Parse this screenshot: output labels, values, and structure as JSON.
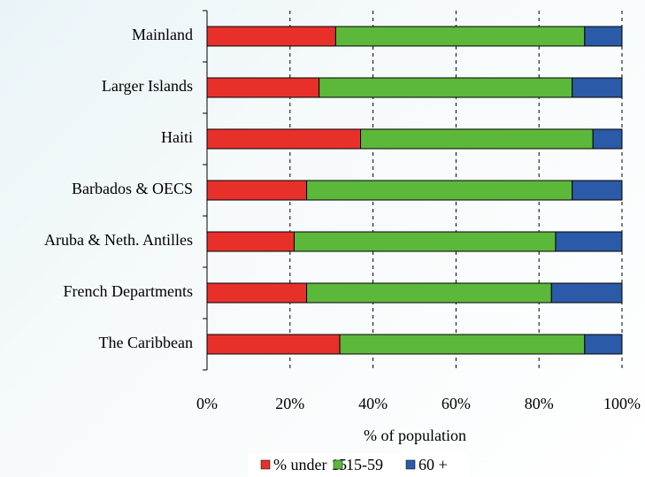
{
  "chart_data": {
    "type": "stacked-barh",
    "xlabel": "% of population",
    "categories": [
      "Mainland",
      "Larger Islands",
      "Haiti",
      "Barbados & OECS",
      "Aruba & Neth. Antilles",
      "French Departments",
      "The Caribbean"
    ],
    "series": [
      {
        "name": "% under 15",
        "color": "#e8302a",
        "values": [
          31,
          27,
          37,
          24,
          21,
          24,
          32
        ]
      },
      {
        "name": "15-59",
        "color": "#5cb83a",
        "values": [
          60,
          61,
          56,
          64,
          63,
          59,
          59
        ]
      },
      {
        "name": "60 +",
        "color": "#2a5aa8",
        "values": [
          9,
          12,
          7,
          12,
          16,
          17,
          9
        ]
      }
    ],
    "xlim": [
      0,
      100
    ],
    "xticks": [
      {
        "value": 0,
        "label": "0%"
      },
      {
        "value": 20,
        "label": "20%"
      },
      {
        "value": 40,
        "label": "40%"
      },
      {
        "value": 60,
        "label": "60%"
      },
      {
        "value": 80,
        "label": "80%"
      },
      {
        "value": 100,
        "label": "100%"
      }
    ],
    "grid": true
  }
}
